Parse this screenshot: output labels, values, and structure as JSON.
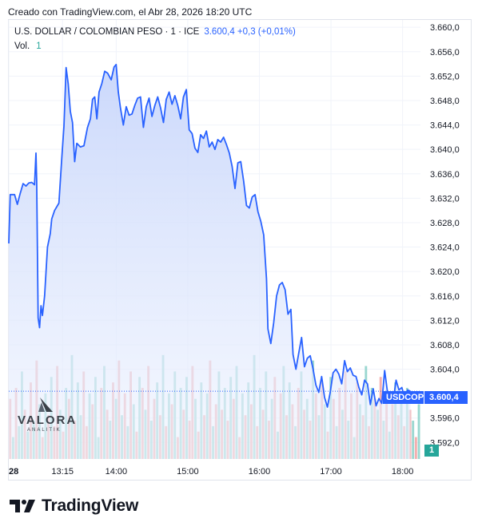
{
  "header": {
    "created_text": "Creado con TradingView.com, el Abr 28, 2026 18:20 UTC"
  },
  "legend": {
    "symbol_text": "U.S. DOLLAR / COLOMBIAN PESO · 1 · ICE",
    "value_text": "3.600,4  +0,3 (+0,01%)",
    "volume_label": "Vol.",
    "volume_value": "1"
  },
  "price_tag": {
    "symbol": "USDCOP",
    "price": "3.600,4"
  },
  "volume_tag": "1",
  "watermark": {
    "name": "VALORA",
    "subtitle": "ANALITIK"
  },
  "brand": {
    "name": "TradingView",
    "logo_icon": "tradingview-logo-icon"
  },
  "colors": {
    "line": "#2962ff",
    "area_fill_top": "#c8d6fb",
    "volume_up": "#8fd3cb",
    "volume_down": "#f3a6a6",
    "tag_bg": "#2962ff",
    "volume_tag_bg": "#26a69a"
  },
  "chart_data": {
    "type": "area",
    "title": "U.S. DOLLAR / COLOMBIAN PESO · 1 · ICE",
    "xlabel": "",
    "ylabel": "",
    "ylim": [
      3589.3,
      3661.2
    ],
    "grid": true,
    "x_ticks": [
      "28",
      "13:15",
      "14:00",
      "15:00",
      "16:00",
      "17:00",
      "18:00"
    ],
    "x_tick_hours": [
      12.5,
      13.25,
      14.0,
      15.0,
      16.0,
      17.0,
      18.0
    ],
    "y_ticks": [
      "3.660,0",
      "3.656,0",
      "3.652,0",
      "3.648,0",
      "3.644,0",
      "3.640,0",
      "3.636,0",
      "3.632,0",
      "3.628,0",
      "3.624,0",
      "3.620,0",
      "3.616,0",
      "3.612,0",
      "3.608,0",
      "3.604,0",
      "3.596,0",
      "3.592,0"
    ],
    "y_tick_values": [
      3660,
      3656,
      3652,
      3648,
      3644,
      3640,
      3636,
      3632,
      3628,
      3624,
      3620,
      3616,
      3612,
      3608,
      3604,
      3596,
      3592
    ],
    "last_price": 3600.4,
    "series": [
      {
        "name": "USDCOP",
        "points": [
          [
            12.5,
            3624.6
          ],
          [
            12.52,
            3632.6
          ],
          [
            12.55,
            3632.6
          ],
          [
            12.58,
            3632.6
          ],
          [
            12.62,
            3631.0
          ],
          [
            12.66,
            3632.8
          ],
          [
            12.7,
            3634.4
          ],
          [
            12.74,
            3634.0
          ],
          [
            12.78,
            3634.5
          ],
          [
            12.82,
            3634.6
          ],
          [
            12.86,
            3634.2
          ],
          [
            12.88,
            3639.4
          ],
          [
            12.89,
            3634.8
          ],
          [
            12.91,
            3612.4
          ],
          [
            12.93,
            3610.8
          ],
          [
            12.95,
            3614.4
          ],
          [
            12.97,
            3612.8
          ],
          [
            13.0,
            3616.0
          ],
          [
            13.04,
            3624.0
          ],
          [
            13.08,
            3626.2
          ],
          [
            13.1,
            3628.6
          ],
          [
            13.14,
            3630.0
          ],
          [
            13.2,
            3631.2
          ],
          [
            13.24,
            3638.6
          ],
          [
            13.27,
            3643.8
          ],
          [
            13.3,
            3653.4
          ],
          [
            13.33,
            3650.8
          ],
          [
            13.36,
            3646.2
          ],
          [
            13.39,
            3644.4
          ],
          [
            13.42,
            3638.0
          ],
          [
            13.45,
            3641.0
          ],
          [
            13.5,
            3640.4
          ],
          [
            13.55,
            3640.6
          ],
          [
            13.6,
            3643.6
          ],
          [
            13.64,
            3645.0
          ],
          [
            13.67,
            3648.2
          ],
          [
            13.7,
            3648.6
          ],
          [
            13.73,
            3645.0
          ],
          [
            13.76,
            3649.4
          ],
          [
            13.8,
            3650.8
          ],
          [
            13.84,
            3652.8
          ],
          [
            13.88,
            3652.5
          ],
          [
            13.93,
            3651.4
          ],
          [
            13.97,
            3653.5
          ],
          [
            14.0,
            3653.9
          ],
          [
            14.03,
            3649.4
          ],
          [
            14.06,
            3646.8
          ],
          [
            14.1,
            3644.0
          ],
          [
            14.14,
            3647.0
          ],
          [
            14.18,
            3645.6
          ],
          [
            14.22,
            3645.8
          ],
          [
            14.26,
            3647.2
          ],
          [
            14.3,
            3648.4
          ],
          [
            14.34,
            3648.6
          ],
          [
            14.38,
            3643.6
          ],
          [
            14.42,
            3647.0
          ],
          [
            14.46,
            3648.4
          ],
          [
            14.5,
            3645.4
          ],
          [
            14.54,
            3647.2
          ],
          [
            14.58,
            3648.6
          ],
          [
            14.62,
            3646.8
          ],
          [
            14.66,
            3644.4
          ],
          [
            14.7,
            3648.2
          ],
          [
            14.74,
            3649.4
          ],
          [
            14.78,
            3647.4
          ],
          [
            14.82,
            3648.8
          ],
          [
            14.86,
            3647.2
          ],
          [
            14.9,
            3645.0
          ],
          [
            14.94,
            3648.6
          ],
          [
            14.98,
            3649.8
          ],
          [
            15.02,
            3643.2
          ],
          [
            15.06,
            3642.6
          ],
          [
            15.1,
            3640.2
          ],
          [
            15.14,
            3639.5
          ],
          [
            15.18,
            3642.4
          ],
          [
            15.22,
            3641.8
          ],
          [
            15.26,
            3643.0
          ],
          [
            15.3,
            3640.4
          ],
          [
            15.34,
            3641.2
          ],
          [
            15.38,
            3640.0
          ],
          [
            15.42,
            3641.6
          ],
          [
            15.46,
            3641.2
          ],
          [
            15.5,
            3642.0
          ],
          [
            15.54,
            3640.8
          ],
          [
            15.58,
            3639.4
          ],
          [
            15.62,
            3637.2
          ],
          [
            15.66,
            3633.6
          ],
          [
            15.7,
            3637.8
          ],
          [
            15.74,
            3638.0
          ],
          [
            15.78,
            3634.8
          ],
          [
            15.82,
            3630.8
          ],
          [
            15.86,
            3630.4
          ],
          [
            15.9,
            3632.2
          ],
          [
            15.94,
            3632.6
          ],
          [
            15.98,
            3629.8
          ],
          [
            16.02,
            3628.2
          ],
          [
            16.06,
            3626.0
          ],
          [
            16.1,
            3618.8
          ],
          [
            16.12,
            3610.6
          ],
          [
            16.16,
            3608.2
          ],
          [
            16.2,
            3611.6
          ],
          [
            16.24,
            3616.0
          ],
          [
            16.28,
            3617.8
          ],
          [
            16.32,
            3618.2
          ],
          [
            16.36,
            3617.0
          ],
          [
            16.4,
            3613.0
          ],
          [
            16.44,
            3613.8
          ],
          [
            16.47,
            3606.4
          ],
          [
            16.51,
            3604.0
          ],
          [
            16.55,
            3606.6
          ],
          [
            16.59,
            3609.2
          ],
          [
            16.63,
            3604.4
          ],
          [
            16.67,
            3605.8
          ],
          [
            16.71,
            3606.2
          ],
          [
            16.75,
            3604.0
          ],
          [
            16.79,
            3601.4
          ],
          [
            16.83,
            3600.2
          ],
          [
            16.87,
            3602.8
          ],
          [
            16.91,
            3599.4
          ],
          [
            16.95,
            3597.8
          ],
          [
            16.99,
            3600.2
          ],
          [
            17.03,
            3603.4
          ],
          [
            17.07,
            3604.0
          ],
          [
            17.11,
            3603.2
          ],
          [
            17.15,
            3601.6
          ],
          [
            17.19,
            3605.4
          ],
          [
            17.23,
            3603.6
          ],
          [
            17.27,
            3604.2
          ],
          [
            17.31,
            3603.0
          ],
          [
            17.35,
            3602.8
          ],
          [
            17.39,
            3601.0
          ],
          [
            17.43,
            3599.8
          ],
          [
            17.47,
            3602.2
          ],
          [
            17.51,
            3601.6
          ],
          [
            17.55,
            3598.2
          ],
          [
            17.59,
            3600.8
          ],
          [
            17.63,
            3598.0
          ],
          [
            17.67,
            3599.2
          ],
          [
            17.71,
            3598.4
          ],
          [
            17.75,
            3603.8
          ],
          [
            17.79,
            3600.2
          ],
          [
            17.83,
            3599.6
          ],
          [
            17.87,
            3598.8
          ],
          [
            17.91,
            3602.2
          ],
          [
            17.95,
            3600.6
          ],
          [
            17.99,
            3601.0
          ],
          [
            18.03,
            3599.4
          ],
          [
            18.07,
            3600.6
          ],
          [
            18.11,
            3600.4
          ]
        ]
      }
    ],
    "volume": {
      "name": "Vol.",
      "max_bar_fraction_of_pane": 1.0,
      "bars": [
        [
          0.55,
          0
        ],
        [
          0.2,
          1
        ],
        [
          0.65,
          0
        ],
        [
          0.3,
          1
        ],
        [
          0.8,
          1
        ],
        [
          0.45,
          0
        ],
        [
          0.25,
          1
        ],
        [
          0.7,
          0
        ],
        [
          0.35,
          1
        ],
        [
          0.9,
          0
        ],
        [
          0.5,
          1
        ],
        [
          0.2,
          0
        ],
        [
          0.6,
          1
        ],
        [
          0.4,
          0
        ],
        [
          0.75,
          1
        ],
        [
          0.3,
          0
        ],
        [
          0.85,
          0
        ],
        [
          0.45,
          1
        ],
        [
          0.25,
          0
        ],
        [
          0.65,
          1
        ],
        [
          0.55,
          0
        ],
        [
          0.95,
          1
        ],
        [
          0.35,
          0
        ],
        [
          0.7,
          1
        ],
        [
          0.4,
          1
        ],
        [
          0.8,
          0
        ],
        [
          0.3,
          0
        ],
        [
          0.6,
          1
        ],
        [
          0.5,
          0
        ],
        [
          0.75,
          1
        ],
        [
          0.2,
          1
        ],
        [
          0.65,
          0
        ],
        [
          0.85,
          1
        ],
        [
          0.45,
          0
        ],
        [
          0.35,
          1
        ],
        [
          0.7,
          0
        ],
        [
          0.55,
          1
        ],
        [
          0.9,
          0
        ],
        [
          0.4,
          1
        ],
        [
          0.6,
          0
        ],
        [
          0.3,
          1
        ],
        [
          0.8,
          0
        ],
        [
          0.5,
          1
        ],
        [
          0.25,
          0
        ],
        [
          0.75,
          1
        ],
        [
          0.65,
          0
        ],
        [
          0.45,
          1
        ],
        [
          0.85,
          0
        ],
        [
          0.35,
          1
        ],
        [
          0.55,
          0
        ],
        [
          0.7,
          1
        ],
        [
          0.4,
          0
        ],
        [
          0.95,
          1
        ],
        [
          0.3,
          0
        ],
        [
          0.6,
          1
        ],
        [
          0.5,
          0
        ],
        [
          0.8,
          1
        ],
        [
          0.2,
          0
        ],
        [
          0.65,
          1
        ],
        [
          0.45,
          0
        ],
        [
          0.75,
          1
        ],
        [
          0.35,
          0
        ],
        [
          0.85,
          0
        ],
        [
          0.55,
          1
        ],
        [
          0.25,
          0
        ],
        [
          0.7,
          1
        ],
        [
          0.4,
          0
        ],
        [
          0.6,
          1
        ],
        [
          0.9,
          0
        ],
        [
          0.3,
          1
        ],
        [
          0.5,
          0
        ],
        [
          0.8,
          1
        ],
        [
          0.45,
          0
        ],
        [
          0.65,
          1
        ],
        [
          0.35,
          0
        ],
        [
          0.75,
          1
        ],
        [
          0.55,
          0
        ],
        [
          0.85,
          1
        ],
        [
          0.2,
          0
        ],
        [
          0.6,
          1
        ],
        [
          0.4,
          0
        ],
        [
          0.7,
          1
        ],
        [
          0.5,
          0
        ],
        [
          0.95,
          1
        ],
        [
          0.3,
          0
        ],
        [
          0.65,
          1
        ],
        [
          0.45,
          0
        ],
        [
          0.8,
          1
        ],
        [
          0.35,
          0
        ],
        [
          0.55,
          1
        ],
        [
          0.75,
          0
        ],
        [
          0.25,
          1
        ],
        [
          0.6,
          0
        ],
        [
          0.85,
          1
        ],
        [
          0.4,
          0
        ],
        [
          0.7,
          1
        ],
        [
          0.5,
          0
        ],
        [
          0.3,
          1
        ],
        [
          0.65,
          0
        ],
        [
          0.8,
          1
        ],
        [
          0.45,
          0
        ],
        [
          0.55,
          1
        ],
        [
          0.35,
          0
        ],
        [
          0.9,
          1
        ],
        [
          0.6,
          0
        ],
        [
          0.4,
          1
        ],
        [
          0.7,
          0
        ],
        [
          0.5,
          1
        ],
        [
          0.25,
          0
        ],
        [
          0.75,
          1
        ],
        [
          0.55,
          0
        ],
        [
          0.3,
          1
        ],
        [
          0.65,
          0
        ],
        [
          0.45,
          1
        ],
        [
          0.8,
          0
        ],
        [
          0.35,
          1
        ],
        [
          0.6,
          0
        ],
        [
          0.2,
          1
        ],
        [
          0.7,
          0
        ],
        [
          0.5,
          1
        ],
        [
          0.4,
          0
        ],
        [
          0.85,
          1
        ],
        [
          0.3,
          0
        ],
        [
          0.65,
          1
        ],
        [
          0.55,
          0
        ],
        [
          0.45,
          1
        ],
        [
          0.75,
          0
        ],
        [
          0.35,
          1
        ],
        [
          0.6,
          0
        ],
        [
          0.25,
          1
        ],
        [
          0.5,
          0
        ],
        [
          0.7,
          1
        ],
        [
          0.4,
          0
        ],
        [
          0.55,
          1
        ],
        [
          0.3,
          0
        ],
        [
          0.65,
          1
        ],
        [
          0.45,
          0
        ],
        [
          0.35,
          1
        ],
        [
          0.2,
          0
        ],
        [
          0.5,
          1
        ]
      ]
    }
  }
}
